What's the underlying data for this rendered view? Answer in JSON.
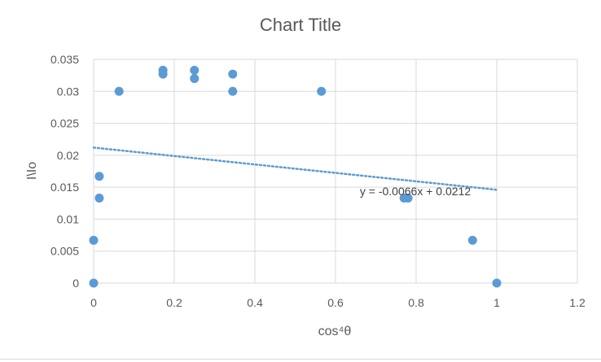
{
  "chart_data": {
    "type": "scatter",
    "title": "Chart Title",
    "xlabel": "cos⁴θ",
    "ylabel": "I\\Io",
    "xlim": [
      0,
      1.2
    ],
    "ylim": [
      0,
      0.035
    ],
    "x_ticks": [
      "0",
      "0.2",
      "0.4",
      "0.6",
      "0.8",
      "1",
      "1.2"
    ],
    "y_ticks": [
      "0",
      "0.005",
      "0.01",
      "0.015",
      "0.02",
      "0.025",
      "0.03",
      "0.035"
    ],
    "grid": "vertical and horizontal",
    "series": [
      {
        "color": "#5b9bd5",
        "points": [
          {
            "x": 0.0,
            "y": 0.0
          },
          {
            "x": 0.0,
            "y": 0.0067
          },
          {
            "x": 0.014,
            "y": 0.0133
          },
          {
            "x": 0.014,
            "y": 0.0167
          },
          {
            "x": 0.063,
            "y": 0.03
          },
          {
            "x": 0.172,
            "y": 0.0327
          },
          {
            "x": 0.172,
            "y": 0.0333
          },
          {
            "x": 0.25,
            "y": 0.032
          },
          {
            "x": 0.25,
            "y": 0.0333
          },
          {
            "x": 0.345,
            "y": 0.03
          },
          {
            "x": 0.345,
            "y": 0.0327
          },
          {
            "x": 0.565,
            "y": 0.03
          },
          {
            "x": 0.77,
            "y": 0.0133
          },
          {
            "x": 0.78,
            "y": 0.0133
          },
          {
            "x": 0.94,
            "y": 0.0067
          },
          {
            "x": 1.0,
            "y": 0.0
          }
        ]
      }
    ],
    "trendline": {
      "type": "linear",
      "slope": -0.0066,
      "intercept": 0.0212,
      "x_range": [
        0,
        1.0
      ],
      "equation": "y = -0.0066x + 0.0212",
      "color": "#5b9bd5",
      "style": "dotted"
    }
  }
}
